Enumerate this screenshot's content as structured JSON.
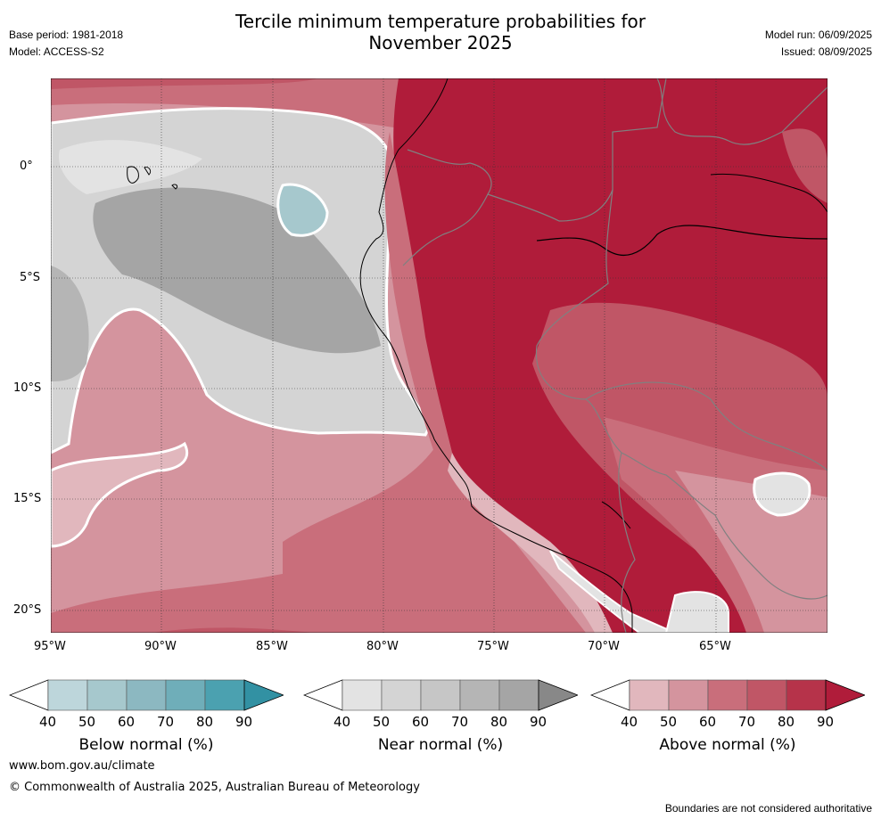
{
  "header": {
    "title_line1": "Tercile minimum temperature probabilities for",
    "title_line2": "November 2025",
    "base_period": "Base period: 1981-2018",
    "model": "Model: ACCESS-S2",
    "model_run": "Model run: 06/09/2025",
    "issued": "Issued: 08/09/2025"
  },
  "map": {
    "lon_labels": [
      "95°W",
      "90°W",
      "85°W",
      "80°W",
      "75°W",
      "70°W",
      "65°W"
    ],
    "lat_labels": [
      "0°",
      "5°S",
      "10°S",
      "15°S",
      "20°S"
    ],
    "lon_range": [
      -95,
      -60
    ],
    "lat_range": [
      -21,
      4
    ]
  },
  "colorbars": [
    {
      "name": "Below normal (%)",
      "ticks": [
        "40",
        "50",
        "60",
        "70",
        "80",
        "90"
      ],
      "colors": [
        "#ffffff",
        "#bdd6db",
        "#a6c8cd",
        "#8cb8c1",
        "#6faeb9",
        "#4ba1b0",
        "#3291a3"
      ]
    },
    {
      "name": "Near normal (%)",
      "ticks": [
        "40",
        "50",
        "60",
        "70",
        "80",
        "90"
      ],
      "colors": [
        "#ffffff",
        "#e3e3e3",
        "#d4d4d4",
        "#c6c6c6",
        "#b5b5b5",
        "#a5a5a5",
        "#888888"
      ]
    },
    {
      "name": "Above normal (%)",
      "ticks": [
        "40",
        "50",
        "60",
        "70",
        "80",
        "90"
      ],
      "colors": [
        "#ffffff",
        "#e1b7bd",
        "#d4949e",
        "#c96e7b",
        "#c05666",
        "#b6334a",
        "#b01c3a"
      ]
    }
  ],
  "footer": {
    "website": "www.bom.gov.au/climate",
    "copyright": "© Commonwealth of Australia 2025, Australian Bureau of Meteorology",
    "disclaimer": "Boundaries are not considered authoritative"
  }
}
